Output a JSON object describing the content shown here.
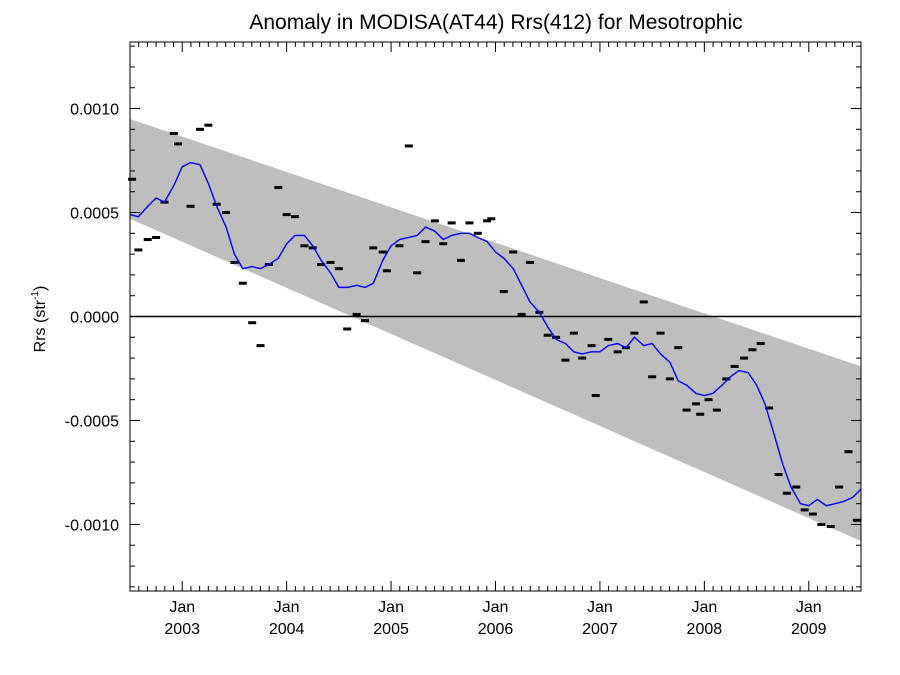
{
  "chart_data": {
    "type": "scatter",
    "title": "Anomaly in MODISA(AT44) Rrs(412) for Mesotrophic",
    "xlabel": "",
    "ylabel": {
      "base": "Rrs (str",
      "sup": "-1",
      "tail": ")"
    },
    "x_unit": "years (decimal)",
    "xlim": [
      2002.5,
      2009.5
    ],
    "ylim": [
      -0.00132,
      0.00132
    ],
    "y_ticks": [
      {
        "value": 0.001,
        "label": "0.0010"
      },
      {
        "value": 0.0005,
        "label": "0.0005"
      },
      {
        "value": 0.0,
        "label": "0.0000"
      },
      {
        "value": -0.0005,
        "label": "-0.0005"
      },
      {
        "value": -0.001,
        "label": "-0.0010"
      }
    ],
    "x_ticks": [
      {
        "value": 2003.0,
        "month": "Jan",
        "year": "2003"
      },
      {
        "value": 2004.0,
        "month": "Jan",
        "year": "2004"
      },
      {
        "value": 2005.0,
        "month": "Jan",
        "year": "2005"
      },
      {
        "value": 2006.0,
        "month": "Jan",
        "year": "2006"
      },
      {
        "value": 2007.0,
        "month": "Jan",
        "year": "2007"
      },
      {
        "value": 2008.0,
        "month": "Jan",
        "year": "2008"
      },
      {
        "value": 2009.0,
        "month": "Jan",
        "year": "2009"
      }
    ],
    "zero_line": 0.0,
    "band": {
      "color": "#bebebe",
      "upper": [
        [
          2002.5,
          0.00095
        ],
        [
          2009.5,
          -0.00024
        ]
      ],
      "lower": [
        [
          2002.5,
          0.00047
        ],
        [
          2009.5,
          -0.00108
        ]
      ]
    },
    "series": [
      {
        "style": "dash-markers",
        "color": "#000000",
        "points": [
          [
            2002.52,
            0.00066
          ],
          [
            2002.58,
            0.00032
          ],
          [
            2002.67,
            0.00037
          ],
          [
            2002.75,
            0.00038
          ],
          [
            2002.83,
            0.00055
          ],
          [
            2002.92,
            0.00088
          ],
          [
            2002.96,
            0.00083
          ],
          [
            2003.08,
            0.00053
          ],
          [
            2003.17,
            0.0009
          ],
          [
            2003.25,
            0.00092
          ],
          [
            2003.33,
            0.00054
          ],
          [
            2003.42,
            0.0005
          ],
          [
            2003.5,
            0.00026
          ],
          [
            2003.58,
            0.00016
          ],
          [
            2003.67,
            -3e-05
          ],
          [
            2003.75,
            -0.00014
          ],
          [
            2003.83,
            0.00025
          ],
          [
            2003.92,
            0.00062
          ],
          [
            2004.0,
            0.00049
          ],
          [
            2004.08,
            0.00048
          ],
          [
            2004.17,
            0.00034
          ],
          [
            2004.25,
            0.00033
          ],
          [
            2004.33,
            0.00025
          ],
          [
            2004.42,
            0.00026
          ],
          [
            2004.5,
            0.00023
          ],
          [
            2004.58,
            -6e-05
          ],
          [
            2004.67,
            1e-05
          ],
          [
            2004.75,
            -2e-05
          ],
          [
            2004.83,
            0.00033
          ],
          [
            2004.92,
            0.00031
          ],
          [
            2004.96,
            0.00022
          ],
          [
            2005.08,
            0.00034
          ],
          [
            2005.17,
            0.00082
          ],
          [
            2005.25,
            0.00021
          ],
          [
            2005.33,
            0.00036
          ],
          [
            2005.42,
            0.00046
          ],
          [
            2005.5,
            0.00035
          ],
          [
            2005.58,
            0.00045
          ],
          [
            2005.67,
            0.00027
          ],
          [
            2005.75,
            0.00045
          ],
          [
            2005.83,
            0.0004
          ],
          [
            2005.92,
            0.00046
          ],
          [
            2005.96,
            0.00047
          ],
          [
            2006.08,
            0.00012
          ],
          [
            2006.17,
            0.00031
          ],
          [
            2006.25,
            1e-05
          ],
          [
            2006.33,
            0.00026
          ],
          [
            2006.42,
            2e-05
          ],
          [
            2006.5,
            -9e-05
          ],
          [
            2006.58,
            -0.0001
          ],
          [
            2006.67,
            -0.00021
          ],
          [
            2006.75,
            -8e-05
          ],
          [
            2006.83,
            -0.0002
          ],
          [
            2006.92,
            -0.00014
          ],
          [
            2006.96,
            -0.00038
          ],
          [
            2007.08,
            -0.00011
          ],
          [
            2007.17,
            -0.00017
          ],
          [
            2007.25,
            -0.00015
          ],
          [
            2007.33,
            -8e-05
          ],
          [
            2007.42,
            7e-05
          ],
          [
            2007.5,
            -0.00029
          ],
          [
            2007.58,
            -8e-05
          ],
          [
            2007.67,
            -0.0003
          ],
          [
            2007.75,
            -0.00015
          ],
          [
            2007.83,
            -0.00045
          ],
          [
            2007.92,
            -0.00042
          ],
          [
            2007.96,
            -0.00047
          ],
          [
            2008.04,
            -0.0004
          ],
          [
            2008.12,
            -0.00045
          ],
          [
            2008.21,
            -0.0003
          ],
          [
            2008.29,
            -0.00024
          ],
          [
            2008.38,
            -0.0002
          ],
          [
            2008.46,
            -0.00016
          ],
          [
            2008.54,
            -0.00013
          ],
          [
            2008.62,
            -0.00044
          ],
          [
            2008.71,
            -0.00076
          ],
          [
            2008.79,
            -0.00085
          ],
          [
            2008.88,
            -0.00082
          ],
          [
            2008.96,
            -0.00093
          ],
          [
            2009.04,
            -0.00095
          ],
          [
            2009.12,
            -0.001
          ],
          [
            2009.21,
            -0.00101
          ],
          [
            2009.29,
            -0.00082
          ],
          [
            2009.38,
            -0.00065
          ],
          [
            2009.46,
            -0.00098
          ]
        ]
      },
      {
        "style": "line",
        "color": "#0000ff",
        "points": [
          [
            2002.5,
            0.00049
          ],
          [
            2002.58,
            0.00048
          ],
          [
            2002.67,
            0.00053
          ],
          [
            2002.75,
            0.00057
          ],
          [
            2002.83,
            0.00055
          ],
          [
            2002.92,
            0.00063
          ],
          [
            2003.0,
            0.00072
          ],
          [
            2003.08,
            0.00074
          ],
          [
            2003.17,
            0.00073
          ],
          [
            2003.25,
            0.00064
          ],
          [
            2003.33,
            0.00053
          ],
          [
            2003.42,
            0.00043
          ],
          [
            2003.5,
            0.0003
          ],
          [
            2003.58,
            0.00023
          ],
          [
            2003.67,
            0.00024
          ],
          [
            2003.75,
            0.00023
          ],
          [
            2003.83,
            0.00025
          ],
          [
            2003.92,
            0.00028
          ],
          [
            2004.0,
            0.00035
          ],
          [
            2004.08,
            0.00039
          ],
          [
            2004.17,
            0.00039
          ],
          [
            2004.25,
            0.00034
          ],
          [
            2004.33,
            0.00027
          ],
          [
            2004.42,
            0.00021
          ],
          [
            2004.5,
            0.00014
          ],
          [
            2004.58,
            0.00014
          ],
          [
            2004.67,
            0.00015
          ],
          [
            2004.75,
            0.00014
          ],
          [
            2004.83,
            0.00016
          ],
          [
            2004.92,
            0.00027
          ],
          [
            2005.0,
            0.00034
          ],
          [
            2005.08,
            0.00037
          ],
          [
            2005.17,
            0.00038
          ],
          [
            2005.25,
            0.00039
          ],
          [
            2005.33,
            0.00043
          ],
          [
            2005.42,
            0.00041
          ],
          [
            2005.5,
            0.00037
          ],
          [
            2005.58,
            0.00039
          ],
          [
            2005.67,
            0.0004
          ],
          [
            2005.75,
            0.0004
          ],
          [
            2005.83,
            0.00038
          ],
          [
            2005.92,
            0.00036
          ],
          [
            2006.0,
            0.00031
          ],
          [
            2006.08,
            0.00028
          ],
          [
            2006.17,
            0.00023
          ],
          [
            2006.25,
            0.00015
          ],
          [
            2006.33,
            7e-05
          ],
          [
            2006.42,
            2e-05
          ],
          [
            2006.5,
            -5e-05
          ],
          [
            2006.58,
            -0.00011
          ],
          [
            2006.67,
            -0.00013
          ],
          [
            2006.75,
            -0.00017
          ],
          [
            2006.83,
            -0.00018
          ],
          [
            2006.92,
            -0.00017
          ],
          [
            2007.0,
            -0.00017
          ],
          [
            2007.08,
            -0.00014
          ],
          [
            2007.17,
            -0.00013
          ],
          [
            2007.25,
            -0.00015
          ],
          [
            2007.33,
            -0.0001
          ],
          [
            2007.42,
            -0.00014
          ],
          [
            2007.5,
            -0.00013
          ],
          [
            2007.58,
            -0.00018
          ],
          [
            2007.67,
            -0.00022
          ],
          [
            2007.75,
            -0.00031
          ],
          [
            2007.83,
            -0.00033
          ],
          [
            2007.92,
            -0.00037
          ],
          [
            2008.0,
            -0.00038
          ],
          [
            2008.08,
            -0.00037
          ],
          [
            2008.17,
            -0.00033
          ],
          [
            2008.25,
            -0.00029
          ],
          [
            2008.33,
            -0.00026
          ],
          [
            2008.42,
            -0.00027
          ],
          [
            2008.5,
            -0.00033
          ],
          [
            2008.58,
            -0.00042
          ],
          [
            2008.67,
            -0.00057
          ],
          [
            2008.75,
            -0.00071
          ],
          [
            2008.83,
            -0.00082
          ],
          [
            2008.92,
            -0.0009
          ],
          [
            2009.0,
            -0.00091
          ],
          [
            2009.08,
            -0.00088
          ],
          [
            2009.17,
            -0.00091
          ],
          [
            2009.25,
            -0.0009
          ],
          [
            2009.33,
            -0.00089
          ],
          [
            2009.42,
            -0.00087
          ],
          [
            2009.5,
            -0.00083
          ]
        ]
      }
    ]
  }
}
